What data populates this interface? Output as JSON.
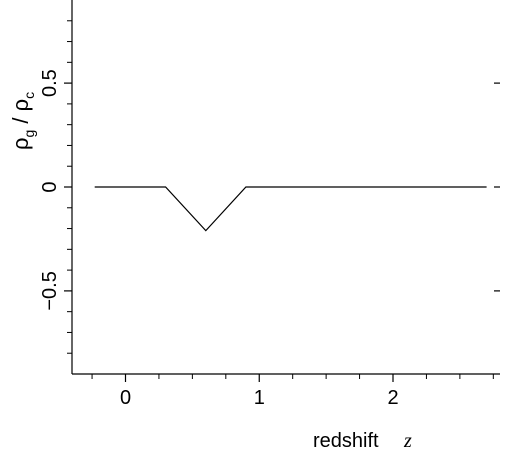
{
  "chart_data": {
    "type": "line",
    "title": "",
    "xlabel": "redshift",
    "xlabel_var": "z",
    "ylabel_parts": {
      "num": "ρ",
      "num_sub": "g",
      "slash": " / ",
      "den": "ρ",
      "den_sub": "c"
    },
    "xlim": [
      -0.4,
      2.8
    ],
    "ylim": [
      -0.9,
      0.9
    ],
    "x_ticks": [
      0,
      1,
      2
    ],
    "x_tick_labels": [
      "0",
      "1",
      "2"
    ],
    "y_ticks": [
      -0.5,
      0,
      0.5
    ],
    "y_tick_labels": [
      "−0.5",
      "0",
      "0.5"
    ],
    "grid": false,
    "series": [
      {
        "x": [
          -0.23,
          0.3,
          0.6,
          0.9,
          2.7
        ],
        "y": [
          0,
          0,
          -0.21,
          0,
          0
        ],
        "color": "#000000"
      }
    ]
  }
}
